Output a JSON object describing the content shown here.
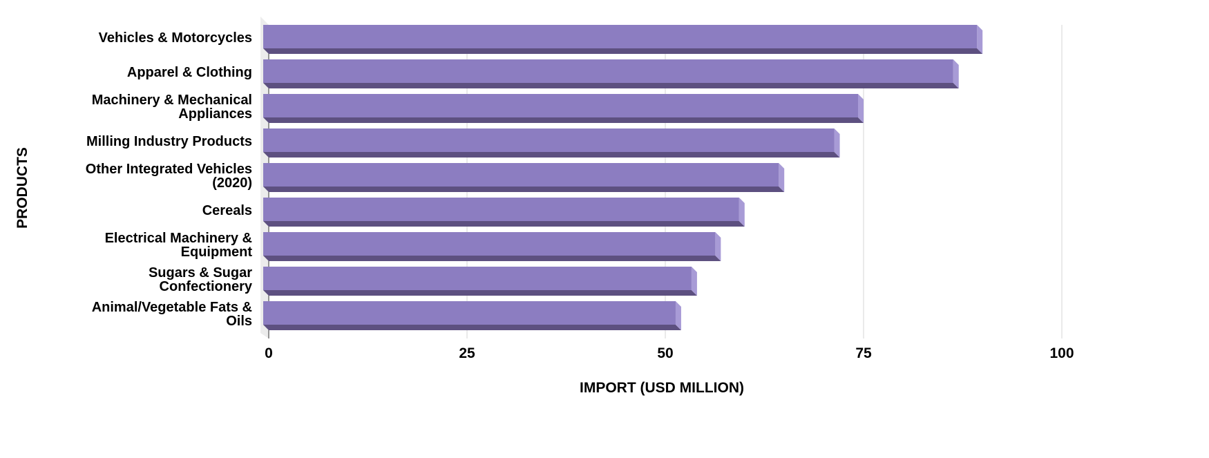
{
  "chart_data": {
    "type": "bar",
    "orientation": "horizontal",
    "style": "3d",
    "categories": [
      [
        "Vehicles & Motorcycles"
      ],
      [
        "Apparel & Clothing"
      ],
      [
        "Machinery & Mechanical",
        "Appliances"
      ],
      [
        "Milling Industry Products"
      ],
      [
        "Other Integrated Vehicles",
        "(2020)"
      ],
      [
        "Cereals"
      ],
      [
        "Electrical Machinery &",
        "Equipment"
      ],
      [
        "Sugars & Sugar",
        "Confectionery"
      ],
      [
        "Animal/Vegetable Fats &",
        "Oils"
      ]
    ],
    "values": [
      90,
      87,
      75,
      72,
      65,
      60,
      57,
      54,
      52
    ],
    "xlabel": "IMPORT (USD MILLION)",
    "ylabel": "PRODUCTS",
    "xlim": [
      0,
      100
    ],
    "xticks": [
      "0",
      "25",
      "50",
      "75",
      "100"
    ],
    "grid": true,
    "colors": {
      "front": "#8c7dc1",
      "bottom": "#5d5080",
      "side": "#a89bd6",
      "wall": "#ececec",
      "grid": "#d6d6d6"
    }
  }
}
